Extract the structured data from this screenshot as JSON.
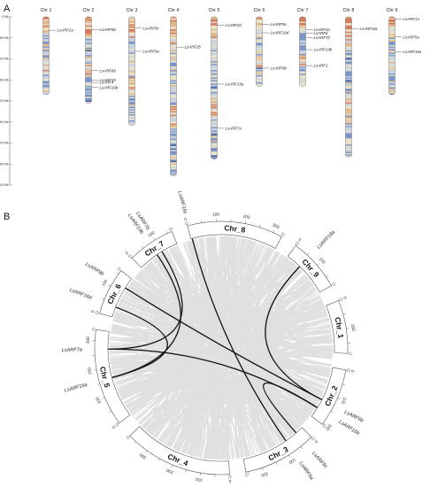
{
  "panel_a": {
    "label": "A",
    "ruler": {
      "label_suffix": " Mb",
      "ticks": [
        0,
        50,
        100,
        150,
        200,
        250,
        300,
        350,
        400
      ]
    },
    "chromosomes": [
      {
        "name": "Chr 1",
        "length": 185,
        "genes": [
          {
            "label": "LsARF2a",
            "pos": 32
          }
        ]
      },
      {
        "name": "Chr 2",
        "length": 205,
        "genes": [
          {
            "label": "LsARF5b",
            "pos": 30
          },
          {
            "label": "LsARF6b",
            "pos": 128
          },
          {
            "label": "LsARF10",
            "pos": 150
          },
          {
            "label": "LsARF4",
            "pos": 156
          },
          {
            "label": "LsARF16b",
            "pos": 168
          }
        ]
      },
      {
        "name": "Chr 3",
        "length": 258,
        "genes": [
          {
            "label": "LsARF9c",
            "pos": 27
          },
          {
            "label": "LsARF9a",
            "pos": 82
          }
        ]
      },
      {
        "name": "Chr 4",
        "length": 378,
        "genes": [
          {
            "label": "LsARF2b",
            "pos": 72
          }
        ]
      },
      {
        "name": "Chr 5",
        "length": 338,
        "genes": [
          {
            "label": "LsARF2b",
            "pos": 20
          },
          {
            "label": "LsARF19a",
            "pos": 160
          },
          {
            "label": "LsARF7a",
            "pos": 265
          }
        ]
      },
      {
        "name": "Chr 6",
        "length": 165,
        "genes": [
          {
            "label": "LsARF9a",
            "pos": 18
          },
          {
            "label": "LsARF16d",
            "pos": 38
          },
          {
            "label": "LsARF9b",
            "pos": 122
          }
        ]
      },
      {
        "name": "Chr 7",
        "length": 165,
        "genes": [
          {
            "label": "LsARF3a",
            "pos": 30
          },
          {
            "label": "LsARF6",
            "pos": 39
          },
          {
            "label": "LsARF7b",
            "pos": 49
          },
          {
            "label": "LsARF19b",
            "pos": 78
          },
          {
            "label": "LsARF1",
            "pos": 116
          }
        ]
      },
      {
        "name": "Chr 8",
        "length": 333,
        "genes": [
          {
            "label": "LsARF16c",
            "pos": 28
          }
        ]
      },
      {
        "name": "Chr 9",
        "length": 185,
        "genes": [
          {
            "label": "LsARF13",
            "pos": 5
          },
          {
            "label": "LsARF5a",
            "pos": 48
          },
          {
            "label": "LsARF16a",
            "pos": 83
          }
        ]
      }
    ]
  },
  "panel_b": {
    "label": "B",
    "chromosomes": [
      {
        "name": "Chr_1",
        "length": 185
      },
      {
        "name": "Chr_2",
        "length": 205
      },
      {
        "name": "Chr_3",
        "length": 258
      },
      {
        "name": "Chr_4",
        "length": 378
      },
      {
        "name": "Chr_5",
        "length": 338
      },
      {
        "name": "Chr_6",
        "length": 165
      },
      {
        "name": "Chr_7",
        "length": 165
      },
      {
        "name": "Chr_8",
        "length": 333
      },
      {
        "name": "Chr_9",
        "length": 185
      }
    ],
    "gene_labels": [
      {
        "label": "LsARF16c",
        "chr": "Chr_8",
        "pos": 5
      },
      {
        "label": "LsARF16a",
        "chr": "Chr_9",
        "pos": 60
      },
      {
        "label": "LsARF16b",
        "chr": "Chr_2",
        "pos": 165
      },
      {
        "label": "LsARF6b",
        "chr": "Chr_2",
        "pos": 130
      },
      {
        "label": "LsARF9c",
        "chr": "Chr_3",
        "pos": 30
      },
      {
        "label": "LsARF9a",
        "chr": "Chr_3",
        "pos": 80
      },
      {
        "label": "LsARF19a",
        "chr": "Chr_5",
        "pos": 160
      },
      {
        "label": "LsARF7a",
        "chr": "Chr_5",
        "pos": 270
      },
      {
        "label": "LsARF16d",
        "chr": "Chr_6",
        "pos": 40
      },
      {
        "label": "LsARF9b",
        "chr": "Chr_6",
        "pos": 122
      },
      {
        "label": "LsARF19b",
        "chr": "Chr_7",
        "pos": 78
      },
      {
        "label": "LsARF7b",
        "chr": "Chr_7",
        "pos": 100
      }
    ],
    "links": [
      {
        "from": [
          "Chr_7",
          78
        ],
        "to": [
          "Chr_5",
          160
        ]
      },
      {
        "from": [
          "Chr_7",
          100
        ],
        "to": [
          "Chr_5",
          270
        ]
      },
      {
        "from": [
          "Chr_6",
          40
        ],
        "to": [
          "Chr_5",
          160
        ]
      },
      {
        "from": [
          "Chr_6",
          122
        ],
        "to": [
          "Chr_2",
          130
        ]
      },
      {
        "from": [
          "Chr_5",
          270
        ],
        "to": [
          "Chr_2",
          165
        ]
      },
      {
        "from": [
          "Chr_8",
          5
        ],
        "to": [
          "Chr_3",
          80
        ]
      },
      {
        "from": [
          "Chr_9",
          60
        ],
        "to": [
          "Chr_2",
          130
        ]
      },
      {
        "from": [
          "Chr_3",
          30
        ],
        "to": [
          "Chr_2",
          165
        ]
      }
    ],
    "colors": {
      "link": "#111111",
      "background_links": "#e0e0e0",
      "segment_fill": "#ffffff",
      "segment_stroke": "#555555"
    }
  },
  "density_colors": [
    "#3b5fa8",
    "#7b95c8",
    "#c9d2df",
    "#e8e2c9",
    "#e4b88b",
    "#d9795a"
  ]
}
